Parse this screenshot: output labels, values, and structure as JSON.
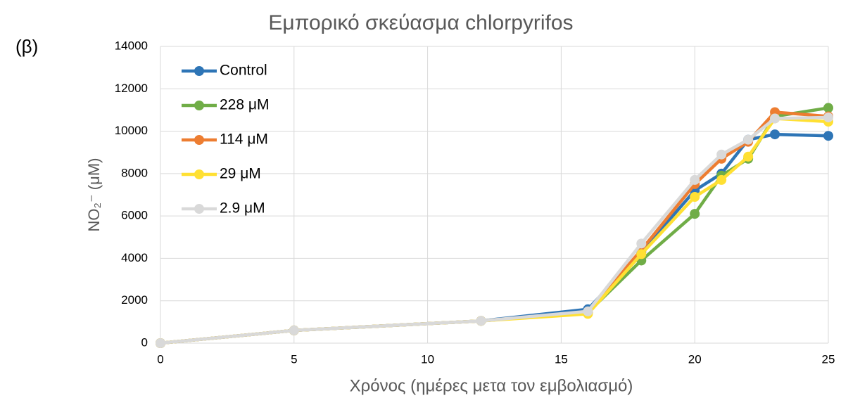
{
  "chart_data": {
    "type": "line",
    "panel_label": "(β)",
    "title": "Εμπορικό σκεύασμα chlorpyrifos",
    "x_label": "Χρόνος (ημέρες μετα τον εμβολιασμό)",
    "y_label": "NO₂⁻ (μM)",
    "x": [
      0,
      5,
      12,
      16,
      18,
      20,
      21,
      22,
      23,
      25
    ],
    "series": [
      {
        "name": "Control",
        "color": "#2e75b6",
        "values": [
          0,
          600,
          1050,
          1600,
          4300,
          7200,
          8000,
          9600,
          9850,
          9780
        ]
      },
      {
        "name": "228 μM",
        "color": "#70ad47",
        "values": [
          0,
          600,
          1050,
          1450,
          3900,
          6100,
          7900,
          8700,
          10700,
          11100
        ]
      },
      {
        "name": "114 μM",
        "color": "#ed7d31",
        "values": [
          0,
          600,
          1050,
          1450,
          4400,
          7500,
          8700,
          9500,
          10900,
          10700
        ]
      },
      {
        "name": "29 μM",
        "color": "#ffe033",
        "values": [
          0,
          600,
          1050,
          1380,
          4200,
          6900,
          7700,
          8800,
          10600,
          10450
        ]
      },
      {
        "name": "2.9 μM",
        "color": "#d9d9d9",
        "values": [
          0,
          600,
          1050,
          1500,
          4700,
          7700,
          8900,
          9600,
          10600,
          10650
        ]
      }
    ],
    "xlim": [
      0,
      25
    ],
    "xticks": [
      0,
      5,
      10,
      15,
      20,
      25
    ],
    "ylim": [
      0,
      14000
    ],
    "yticks": [
      0,
      2000,
      4000,
      6000,
      8000,
      10000,
      12000,
      14000
    ],
    "grid": true,
    "legend": "upper left"
  }
}
